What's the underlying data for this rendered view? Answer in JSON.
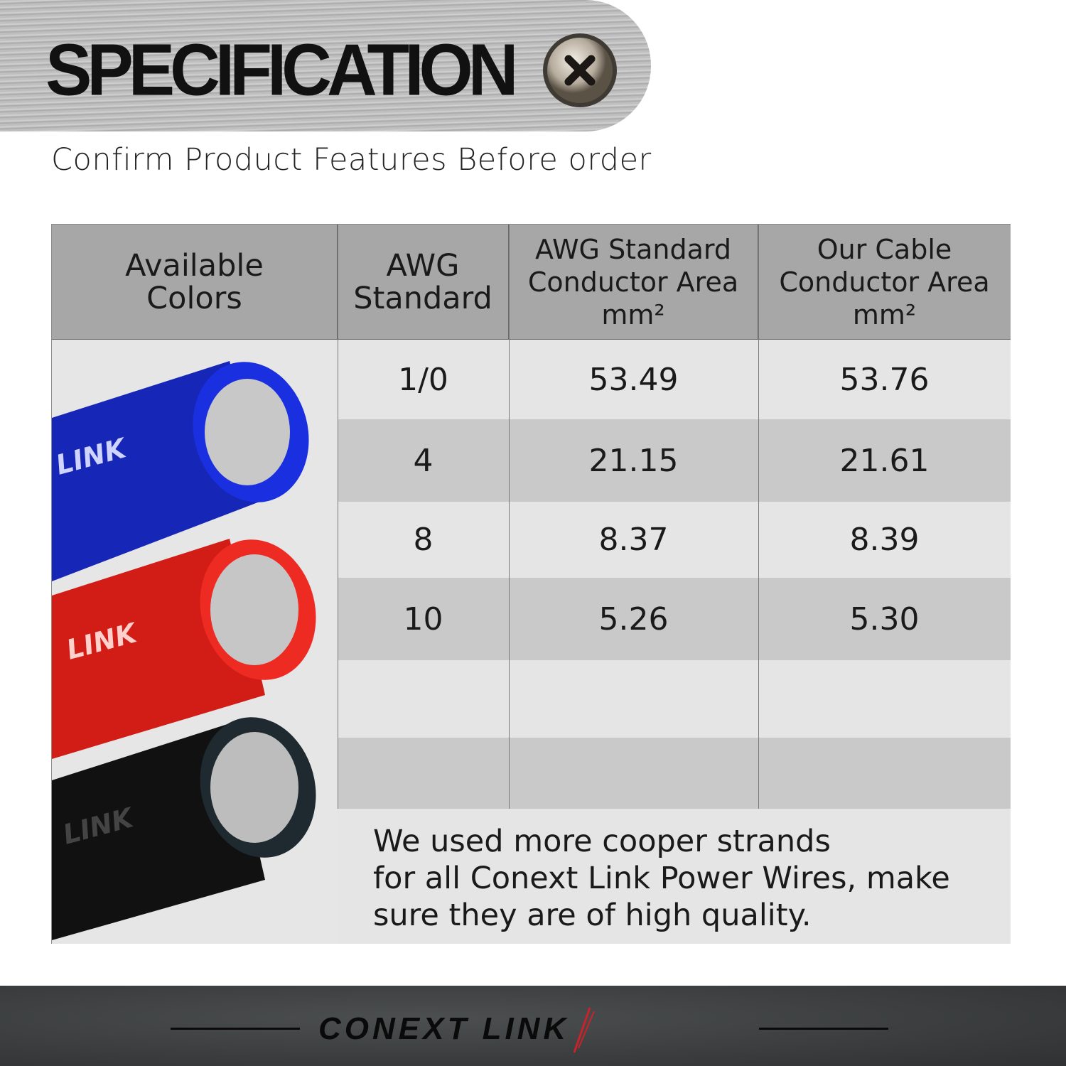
{
  "header": {
    "title": "SPECIFICATION",
    "subtitle": "Confirm Product Features Before order",
    "icon": "screw-icon"
  },
  "table": {
    "columns": [
      "Available Colors",
      "AWG Standard",
      "AWG Standard Conductor Area mm²",
      "Our Cable Conductor Area mm²"
    ],
    "colors": [
      "blue",
      "red",
      "black"
    ],
    "cable_colors_hex": {
      "blue": "#1a2fd0",
      "red": "#e0241c",
      "black": "#151515"
    },
    "cable_print": "LINK",
    "rows": [
      {
        "awg": "1/0",
        "standard": "53.49",
        "ours": "53.76"
      },
      {
        "awg": "4",
        "standard": "21.15",
        "ours": "21.61"
      },
      {
        "awg": "8",
        "standard": "8.37",
        "ours": "8.39"
      },
      {
        "awg": "10",
        "standard": "5.26",
        "ours": "5.30"
      },
      {
        "awg": "",
        "standard": "",
        "ours": ""
      },
      {
        "awg": "",
        "standard": "",
        "ours": ""
      }
    ],
    "note": "We used more cooper strands\n for all Conext Link Power Wires, make\nsure they are of high quality."
  },
  "footer": {
    "logo": "CONEXT LINK"
  }
}
